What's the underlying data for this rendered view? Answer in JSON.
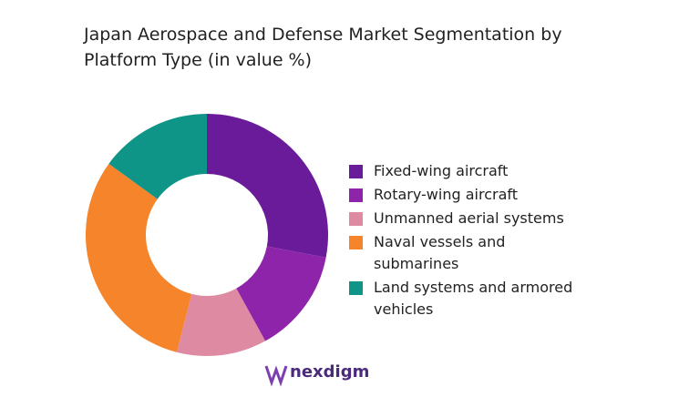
{
  "chart_data": {
    "type": "donut",
    "title": "Japan Aerospace and Defense Market Segmentation by Platform Type (in value %)",
    "categories": [
      "Fixed-wing aircraft",
      "Rotary-wing aircraft",
      "Unmanned aerial systems",
      "Naval vessels and submarines",
      "Land systems and armored vehicles"
    ],
    "values": [
      28,
      14,
      12,
      31,
      15
    ],
    "colors": [
      "#6a1b9a",
      "#8e24aa",
      "#df8aa3",
      "#f5842a",
      "#0f9488"
    ],
    "legend": "right"
  },
  "logo": "nexdigm"
}
